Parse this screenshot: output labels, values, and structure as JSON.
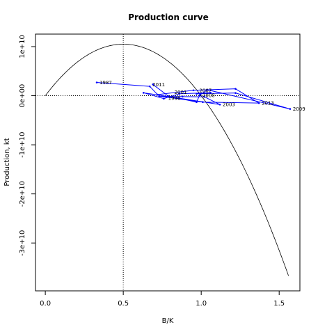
{
  "chart_data": {
    "type": "line",
    "title": "Production curve",
    "xlabel": "B/K",
    "ylabel": "Production, kt",
    "xlim": [
      -0.063,
      1.633
    ],
    "ylim": [
      -39750000000.0,
      12550000000.0
    ],
    "x_ticks": [
      {
        "value": 0.0,
        "label": "0.0"
      },
      {
        "value": 0.5,
        "label": "0.5"
      },
      {
        "value": 1.0,
        "label": "1.0"
      },
      {
        "value": 1.5,
        "label": "1.5"
      }
    ],
    "y_ticks": [
      {
        "value": 10000000000.0,
        "label": "1e+10"
      },
      {
        "value": 0,
        "label": "0e+00"
      },
      {
        "value": -10000000000.0,
        "label": "-1e+10"
      },
      {
        "value": -20000000000.0,
        "label": "-2e+10"
      },
      {
        "value": -30000000000.0,
        "label": "-3e+10"
      }
    ],
    "reference_lines": {
      "vertical_x": 0.5,
      "horizontal_y": 0
    },
    "curve": {
      "kind": "parabola",
      "expression": "4*MSY*x*(1-x)",
      "MSY": 10500000000.0,
      "x_range": [
        0,
        1.56
      ],
      "color": "#000000"
    },
    "series": [
      {
        "color": "#0000ff",
        "x": [
          0.33,
          0.67,
          0.72,
          0.95,
          1.22,
          1.37,
          1.01,
          0.73,
          0.88,
          1.02,
          1.12,
          0.86,
          0.63,
          0.76,
          0.86,
          1.06,
          0.97,
          1.22,
          1.57,
          1.04,
          0.99,
          0.97,
          0.79,
          0.69
        ],
        "y": [
          2700000000.0,
          1900000000.0,
          220000000.0,
          1100000000.0,
          1400000000.0,
          -1500000000.0,
          -1300000000.0,
          -100000000.0,
          -180000000.0,
          -220000000.0,
          -1800000000.0,
          -500000000.0,
          600000000.0,
          -600000000.0,
          400000000.0,
          600000000.0,
          400000000.0,
          550000000.0,
          -2700000000.0,
          1200000000.0,
          100000000.0,
          -1300000000.0,
          -100000000.0,
          2300000000.0
        ]
      }
    ],
    "point_labels": [
      {
        "text": "1987",
        "x": 0.33,
        "y": 2700000000.0
      },
      {
        "text": "2011",
        "x": 0.67,
        "y": 2300000000.0
      },
      {
        "text": "2001",
        "x": 0.81,
        "y": 700000000.0
      },
      {
        "text": "2007",
        "x": 0.97,
        "y": 1100000000.0
      },
      {
        "text": "2000",
        "x": 0.99,
        "y": 100000000.0
      },
      {
        "text": "2013",
        "x": 1.37,
        "y": -1500000000.0
      },
      {
        "text": "2003",
        "x": 1.12,
        "y": -1800000000.0
      },
      {
        "text": "2009",
        "x": 1.57,
        "y": -2700000000.0
      },
      {
        "text": "1996",
        "x": 0.77,
        "y": -500000000.0
      }
    ]
  }
}
